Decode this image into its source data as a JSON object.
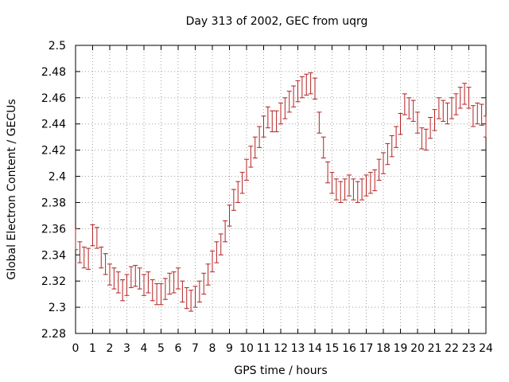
{
  "chart_data": {
    "type": "scatter",
    "title": "Day 313 of 2002, GEC from uqrg",
    "xlabel": "GPS time / hours",
    "ylabel": "Global Electron Content / GECUs",
    "xlim": [
      0,
      24
    ],
    "ylim": [
      2.28,
      2.5
    ],
    "xticks": [
      0,
      1,
      2,
      3,
      4,
      5,
      6,
      7,
      8,
      9,
      10,
      11,
      12,
      13,
      14,
      15,
      16,
      17,
      18,
      19,
      20,
      21,
      22,
      23,
      24
    ],
    "xtick_labels": [
      "0",
      "1",
      "2",
      "3",
      "4",
      "5",
      "6",
      "7",
      "8",
      "9",
      "10",
      "11",
      "12",
      "13",
      "14",
      "15",
      "16",
      "17",
      "18",
      "19",
      "20",
      "21",
      "22",
      "23",
      "24"
    ],
    "yticks": [
      2.28,
      2.3,
      2.32,
      2.34,
      2.36,
      2.38,
      2.4,
      2.42,
      2.44,
      2.46,
      2.48,
      2.5
    ],
    "ytick_labels": [
      "2.28",
      "2.3",
      "2.32",
      "2.34",
      "2.36",
      "2.38",
      "2.4",
      "2.42",
      "2.44",
      "2.46",
      "2.48",
      "2.5"
    ],
    "grid": true,
    "color": "#b22222",
    "error": 0.008,
    "series": [
      {
        "x": [
          0,
          0.25,
          0.5,
          0.75,
          1,
          1.25,
          1.5,
          1.75,
          2,
          2.25,
          2.5,
          2.75,
          3,
          3.25,
          3.5,
          3.75,
          4,
          4.25,
          4.5,
          4.75,
          5,
          5.25,
          5.5,
          5.75,
          6,
          6.25,
          6.5,
          6.75,
          7,
          7.25,
          7.5,
          7.75,
          8,
          8.25,
          8.5,
          8.75,
          9,
          9.25,
          9.5,
          9.75,
          10,
          10.25,
          10.5,
          10.75,
          11,
          11.25,
          11.5,
          11.75,
          12,
          12.25,
          12.5,
          12.75,
          13,
          13.25,
          13.5,
          13.75,
          14,
          14.25,
          14.5,
          14.75,
          15,
          15.25,
          15.5,
          15.75,
          16,
          16.25,
          16.5,
          16.75,
          17,
          17.25,
          17.5,
          17.75,
          18,
          18.25,
          18.5,
          18.75,
          19,
          19.25,
          19.5,
          19.75,
          20,
          20.25,
          20.5,
          20.75,
          21,
          21.25,
          21.5,
          21.75,
          22,
          22.25,
          22.5,
          22.75,
          23,
          23.25,
          23.5,
          23.75,
          24
        ],
        "y": [
          2.352,
          2.342,
          2.338,
          2.337,
          2.355,
          2.353,
          2.338,
          2.333,
          2.325,
          2.322,
          2.319,
          2.313,
          2.317,
          2.323,
          2.324,
          2.322,
          2.317,
          2.319,
          2.313,
          2.31,
          2.31,
          2.314,
          2.318,
          2.319,
          2.322,
          2.312,
          2.307,
          2.305,
          2.308,
          2.312,
          2.318,
          2.325,
          2.335,
          2.342,
          2.348,
          2.358,
          2.37,
          2.382,
          2.388,
          2.395,
          2.405,
          2.415,
          2.422,
          2.43,
          2.438,
          2.445,
          2.442,
          2.442,
          2.448,
          2.452,
          2.457,
          2.461,
          2.465,
          2.468,
          2.47,
          2.471,
          2.467,
          2.441,
          2.422,
          2.403,
          2.395,
          2.39,
          2.388,
          2.39,
          2.393,
          2.39,
          2.388,
          2.39,
          2.393,
          2.395,
          2.397,
          2.405,
          2.41,
          2.417,
          2.423,
          2.43,
          2.44,
          2.455,
          2.452,
          2.45,
          2.441,
          2.429,
          2.428,
          2.437,
          2.443,
          2.452,
          2.45,
          2.448,
          2.452,
          2.455,
          2.46,
          2.463,
          2.46,
          2.446,
          2.448,
          2.447,
          2.438
        ]
      }
    ]
  }
}
